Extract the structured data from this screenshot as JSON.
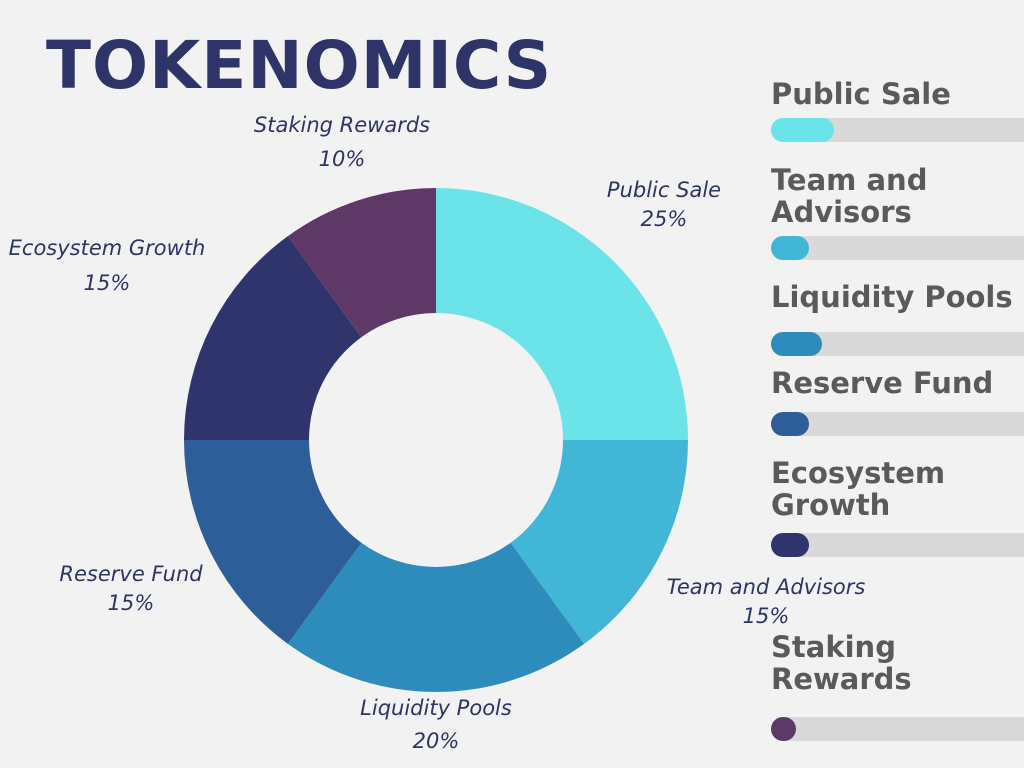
{
  "title": "TOKENOMICS",
  "chart_data": {
    "type": "pie",
    "variant": "donut",
    "categories": [
      "Public Sale",
      "Team and Advisors",
      "Liquidity Pools",
      "Reserve Fund",
      "Ecosystem Growth",
      "Staking Rewards"
    ],
    "values": [
      25,
      15,
      20,
      15,
      15,
      10
    ],
    "value_labels": [
      "25%",
      "15%",
      "20%",
      "15%",
      "15%",
      "10%"
    ],
    "colors": [
      "#6ae4e8",
      "#42b6d6",
      "#2e8cbc",
      "#2d5e98",
      "#30346c",
      "#5e3866"
    ],
    "legend": [
      {
        "label": "Public Sale",
        "fraction": 0.25,
        "color": "#6ae4e8"
      },
      {
        "label": "Team and Advisors",
        "fraction": 0.15,
        "color": "#42b6d6"
      },
      {
        "label": "Liquidity Pools",
        "fraction": 0.2,
        "color": "#2e8cbc"
      },
      {
        "label": "Reserve Fund",
        "fraction": 0.15,
        "color": "#2d5e98"
      },
      {
        "label": "Ecosystem Growth",
        "fraction": 0.15,
        "color": "#30346c"
      },
      {
        "label": "Staking Rewards",
        "fraction": 0.1,
        "color": "#5e3866"
      }
    ],
    "legend_placement": "right"
  }
}
